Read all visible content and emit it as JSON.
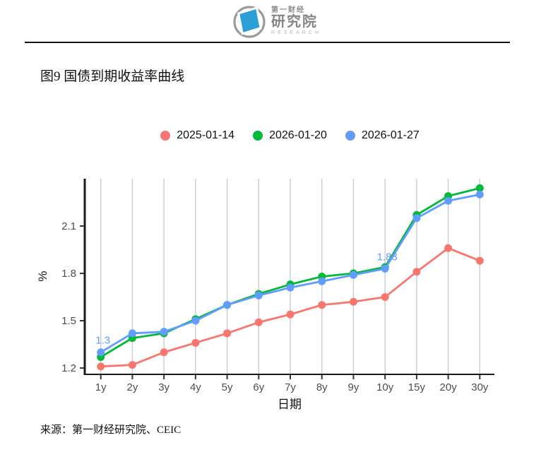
{
  "logo": {
    "brand_cn": "第一财经",
    "brand_unit": "研究院",
    "brand_en": "RESEARCH",
    "accent_color": "#2B9FD6"
  },
  "figure": {
    "title": "图9 国债到期收益率曲线",
    "source": "来源：第一财经研究院、CEIC"
  },
  "chart_data": {
    "type": "line",
    "title": "",
    "xlabel": "日期",
    "ylabel": "%",
    "categories": [
      "1y",
      "2y",
      "3y",
      "4y",
      "5y",
      "6y",
      "7y",
      "8y",
      "9y",
      "10y",
      "15y",
      "20y",
      "30y"
    ],
    "series": [
      {
        "name": "2025-01-14",
        "color": "#F8766D",
        "values": [
          1.21,
          1.22,
          1.3,
          1.36,
          1.42,
          1.49,
          1.54,
          1.6,
          1.62,
          1.65,
          1.81,
          1.96,
          1.88
        ]
      },
      {
        "name": "2026-01-20",
        "color": "#00BA38",
        "values": [
          1.27,
          1.39,
          1.42,
          1.51,
          1.6,
          1.67,
          1.73,
          1.78,
          1.8,
          1.84,
          2.17,
          2.29,
          2.34
        ]
      },
      {
        "name": "2026-01-27",
        "color": "#619CFF",
        "values": [
          1.3,
          1.42,
          1.43,
          1.5,
          1.6,
          1.66,
          1.71,
          1.75,
          1.79,
          1.83,
          2.15,
          2.26,
          2.3
        ]
      }
    ],
    "annotations": [
      {
        "text": "1.3",
        "series": 2,
        "point": 0
      },
      {
        "text": "1.83",
        "series": 2,
        "point": 9
      }
    ],
    "yticks": [
      1.2,
      1.5,
      1.8,
      2.1
    ],
    "ylim": [
      1.16,
      2.4
    ],
    "grid": "vertical-only",
    "legend_position": "top",
    "tick_label_color": "#4d4d4d",
    "gridline_color": "#cccccc",
    "axis_color": "#1a1a1a"
  }
}
